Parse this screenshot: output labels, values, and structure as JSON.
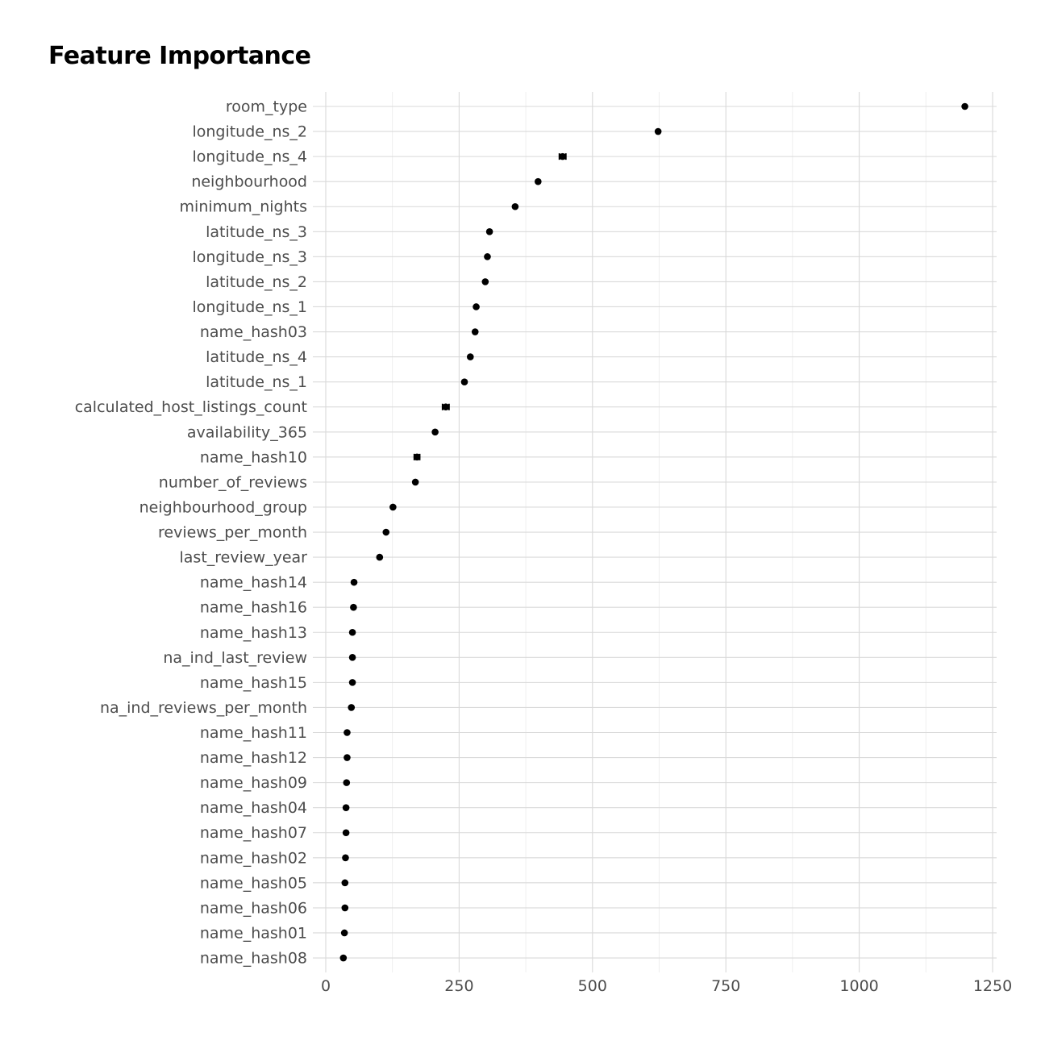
{
  "chart_data": {
    "type": "scatter",
    "title": "Feature Importance",
    "xlabel": "",
    "ylabel": "",
    "xlim": [
      0,
      1250
    ],
    "xticks": [
      0,
      250,
      500,
      750,
      1000,
      1250
    ],
    "grid": true,
    "point_color": "#000000",
    "features": [
      {
        "name": "room_type",
        "value": 1198,
        "err": 0
      },
      {
        "name": "longitude_ns_2",
        "value": 623,
        "err": 0
      },
      {
        "name": "longitude_ns_4",
        "value": 444,
        "err": 6
      },
      {
        "name": "neighbourhood",
        "value": 398,
        "err": 0
      },
      {
        "name": "minimum_nights",
        "value": 355,
        "err": 0
      },
      {
        "name": "latitude_ns_3",
        "value": 307,
        "err": 0
      },
      {
        "name": "longitude_ns_3",
        "value": 303,
        "err": 0
      },
      {
        "name": "latitude_ns_2",
        "value": 299,
        "err": 0
      },
      {
        "name": "longitude_ns_1",
        "value": 282,
        "err": 0
      },
      {
        "name": "name_hash03",
        "value": 280,
        "err": 0
      },
      {
        "name": "latitude_ns_4",
        "value": 271,
        "err": 0
      },
      {
        "name": "latitude_ns_1",
        "value": 260,
        "err": 0
      },
      {
        "name": "calculated_host_listings_count",
        "value": 225,
        "err": 6
      },
      {
        "name": "availability_365",
        "value": 205,
        "err": 0
      },
      {
        "name": "name_hash10",
        "value": 171,
        "err": 5
      },
      {
        "name": "number_of_reviews",
        "value": 168,
        "err": 0
      },
      {
        "name": "neighbourhood_group",
        "value": 126,
        "err": 0
      },
      {
        "name": "reviews_per_month",
        "value": 113,
        "err": 0
      },
      {
        "name": "last_review_year",
        "value": 101,
        "err": 0
      },
      {
        "name": "name_hash14",
        "value": 53,
        "err": 0
      },
      {
        "name": "name_hash16",
        "value": 52,
        "err": 0
      },
      {
        "name": "name_hash13",
        "value": 50,
        "err": 0
      },
      {
        "name": "na_ind_last_review",
        "value": 50,
        "err": 0
      },
      {
        "name": "name_hash15",
        "value": 50,
        "err": 0
      },
      {
        "name": "na_ind_reviews_per_month",
        "value": 48,
        "err": 0
      },
      {
        "name": "name_hash11",
        "value": 40,
        "err": 0
      },
      {
        "name": "name_hash12",
        "value": 40,
        "err": 0
      },
      {
        "name": "name_hash09",
        "value": 39,
        "err": 0
      },
      {
        "name": "name_hash04",
        "value": 38,
        "err": 0
      },
      {
        "name": "name_hash07",
        "value": 38,
        "err": 0
      },
      {
        "name": "name_hash02",
        "value": 37,
        "err": 0
      },
      {
        "name": "name_hash05",
        "value": 36,
        "err": 0
      },
      {
        "name": "name_hash06",
        "value": 36,
        "err": 0
      },
      {
        "name": "name_hash01",
        "value": 35,
        "err": 0
      },
      {
        "name": "name_hash08",
        "value": 33,
        "err": 0
      }
    ]
  }
}
